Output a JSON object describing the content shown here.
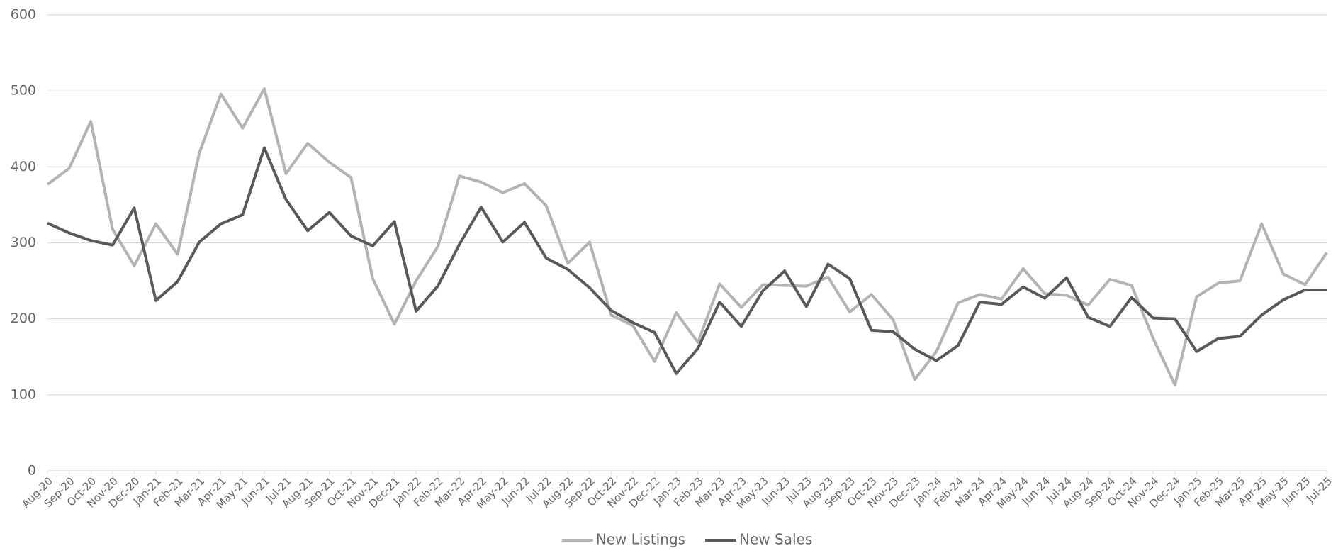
{
  "chart_data": {
    "type": "line",
    "categories": [
      "Aug-20",
      "Sep-20",
      "Oct-20",
      "Nov-20",
      "Dec-20",
      "Jan-21",
      "Feb-21",
      "Mar-21",
      "Apr-21",
      "May-21",
      "Jun-21",
      "Jul-21",
      "Aug-21",
      "Sep-21",
      "Oct-21",
      "Nov-21",
      "Dec-21",
      "Jan-22",
      "Feb-22",
      "Mar-22",
      "Apr-22",
      "May-22",
      "Jun-22",
      "Jul-22",
      "Aug-22",
      "Sep-22",
      "Oct-22",
      "Nov-22",
      "Dec-22",
      "Jan-23",
      "Feb-23",
      "Mar-23",
      "Apr-23",
      "May-23",
      "Jun-23",
      "Jul-23",
      "Aug-23",
      "Sep-23",
      "Oct-23",
      "Nov-23",
      "Dec-23",
      "Jan-24",
      "Feb-24",
      "Mar-24",
      "Apr-24",
      "May-24",
      "Jun-24",
      "Jul-24",
      "Aug-24",
      "Sep-24",
      "Oct-24",
      "Nov-24",
      "Dec-24",
      "Jan-25",
      "Feb-25",
      "Mar-25",
      "Apr-25",
      "May-25",
      "Jun-25",
      "Jul-25"
    ],
    "series": [
      {
        "name": "New Listings",
        "color": "#b3b3b3",
        "values": [
          377,
          398,
          460,
          318,
          270,
          325,
          285,
          418,
          496,
          451,
          503,
          391,
          431,
          406,
          386,
          253,
          193,
          250,
          295,
          388,
          380,
          366,
          378,
          349,
          273,
          301,
          205,
          191,
          144,
          208,
          169,
          246,
          215,
          245,
          244,
          243,
          255,
          209,
          232,
          199,
          120,
          157,
          221,
          232,
          226,
          266,
          233,
          231,
          218,
          252,
          244,
          174,
          113,
          229,
          247,
          250,
          325,
          259,
          245,
          287
        ]
      },
      {
        "name": "New Sales",
        "color": "#595959",
        "values": [
          326,
          313,
          303,
          297,
          346,
          224,
          249,
          301,
          325,
          337,
          425,
          357,
          316,
          340,
          309,
          296,
          328,
          210,
          243,
          298,
          347,
          301,
          327,
          280,
          265,
          241,
          211,
          195,
          182,
          128,
          161,
          222,
          190,
          237,
          263,
          216,
          272,
          253,
          185,
          183,
          160,
          145,
          165,
          222,
          219,
          242,
          227,
          254,
          202,
          190,
          228,
          201,
          200,
          157,
          174,
          177,
          205,
          225,
          238,
          238
        ]
      }
    ],
    "ylim": [
      0,
      600
    ],
    "yticks": [
      0,
      100,
      200,
      300,
      400,
      500,
      600
    ],
    "grid": true,
    "legend": "bottom"
  }
}
